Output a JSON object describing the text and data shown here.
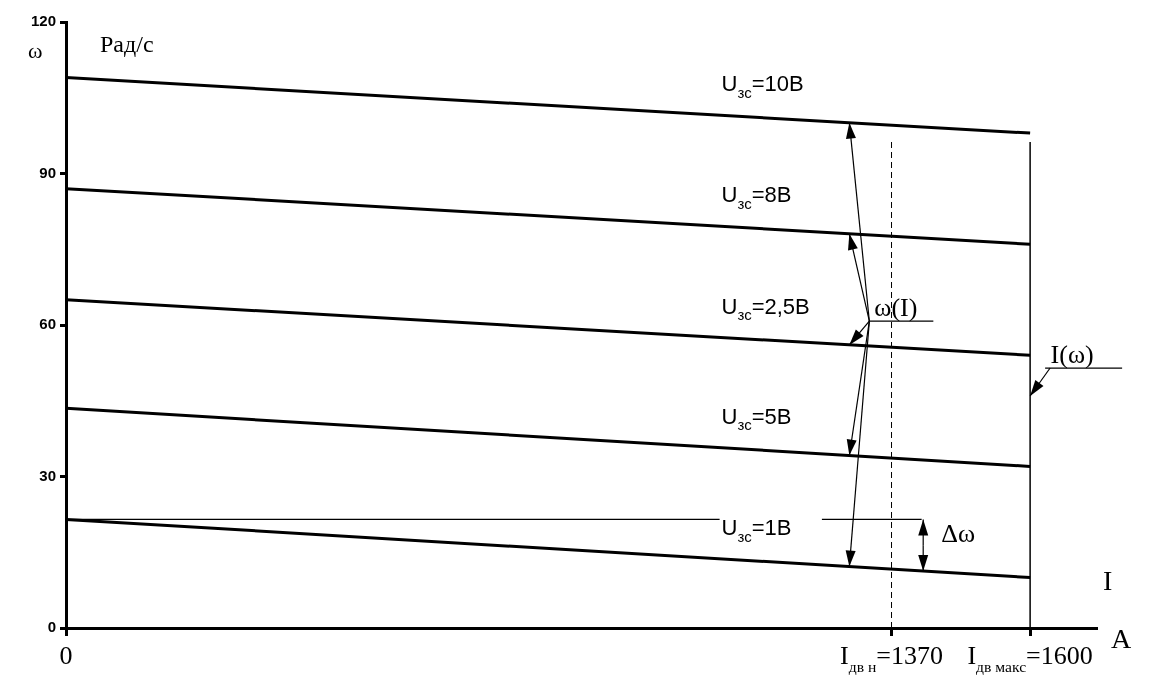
{
  "chart_data": {
    "type": "line",
    "ylabel": "ω",
    "xlabel": "A",
    "x": [
      0,
      1600
    ],
    "xlim": [
      0,
      1711
    ],
    "xticks": [
      0,
      {
        "value": 1370,
        "label": "I$_{дв н}$=1370"
      },
      {
        "value": 1600,
        "label": "I$_{дв макс}$=1600"
      }
    ],
    "ylim": [
      0,
      120
    ],
    "yticks": [
      0,
      30,
      60,
      90,
      120
    ],
    "series": [
      {
        "name": "U$_{зс}$=10В",
        "color": "#000000",
        "values": [
          109,
          98
        ]
      },
      {
        "name": "U$_{зс}$=8В",
        "color": "#000000",
        "values": [
          87,
          76
        ]
      },
      {
        "name": "U$_{зс}$=2,5В",
        "color": "#000000",
        "values": [
          65,
          54
        ]
      },
      {
        "name": "U$_{зс}$=5В",
        "color": "#000000",
        "values": [
          43.5,
          32
        ]
      },
      {
        "name": "U$_{зс}$=1В",
        "color": "#000000",
        "values": [
          21.5,
          10
        ]
      },
      {
        "color": "#000000",
        "x": [
          0,
          1420
        ],
        "values": [
          21.5,
          21.5
        ]
      }
    ],
    "ref_lines": [
      {
        "axis": "x",
        "value": 1370,
        "line_style": "dashed"
      },
      {
        "axis": "x",
        "value": 1600,
        "line_style": "solid"
      }
    ],
    "annotations": [
      "Рад/с",
      "I",
      {
        "text": "ω(I)",
        "x": 1300,
        "y": 56
      },
      "I(ω)",
      "Δω"
    ],
    "grid": false,
    "legend": false,
    "marker": "none",
    "line_style": "solid"
  }
}
